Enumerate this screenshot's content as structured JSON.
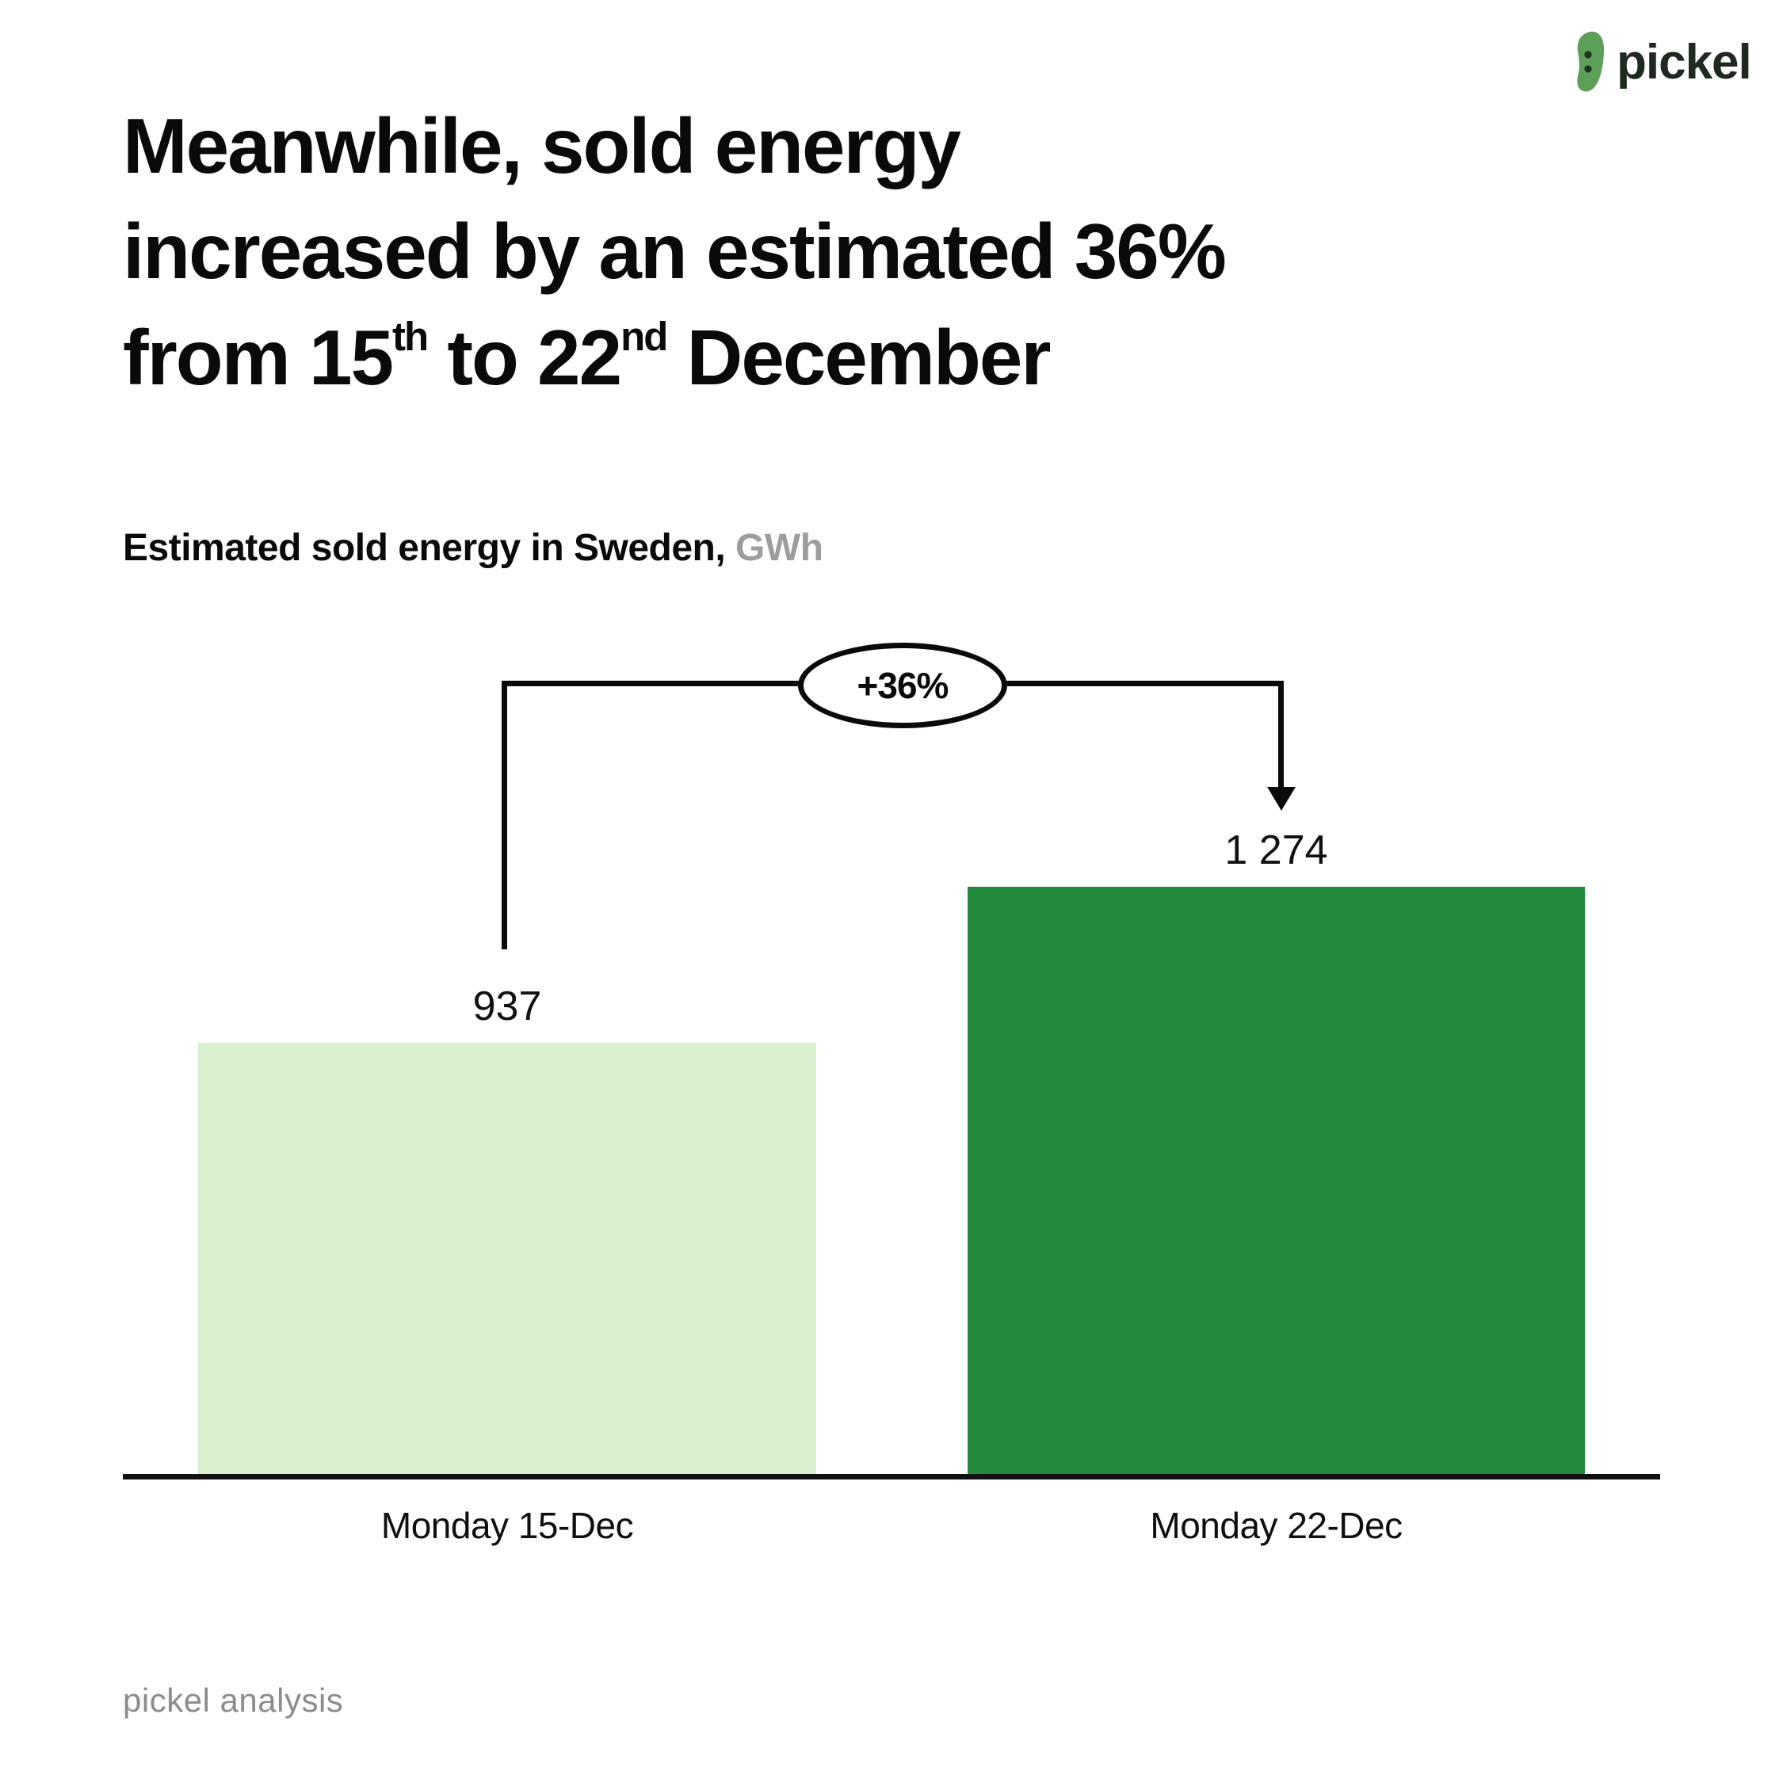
{
  "logo": {
    "brand": "pickel"
  },
  "title": {
    "line1": "Meanwhile, sold energy",
    "line2": "increased by an estimated 36%",
    "line3_pre": "from 15",
    "line3_sup1": "th",
    "line3_mid": " to 22",
    "line3_sup2": "nd",
    "line3_post": " December"
  },
  "subtitle": {
    "text": "Estimated sold energy in Sweden,",
    "unit": "GWh"
  },
  "chart_data": {
    "type": "bar",
    "title": "Estimated sold energy in Sweden, GWh",
    "ylabel": "GWh",
    "categories": [
      "Monday 15-Dec",
      "Monday 22-Dec"
    ],
    "values": [
      937,
      1274
    ],
    "value_labels": [
      "937",
      "1 274"
    ],
    "annotation": {
      "label": "+36%",
      "meaning": "increase from first to second bar"
    },
    "bar_colors": [
      "#d9f0ce",
      "#248b3c"
    ],
    "ylim": [
      0,
      1274
    ],
    "grid": false,
    "legend": false,
    "axis_color": "#111111"
  },
  "footer": {
    "credit": "pickel analysis"
  }
}
